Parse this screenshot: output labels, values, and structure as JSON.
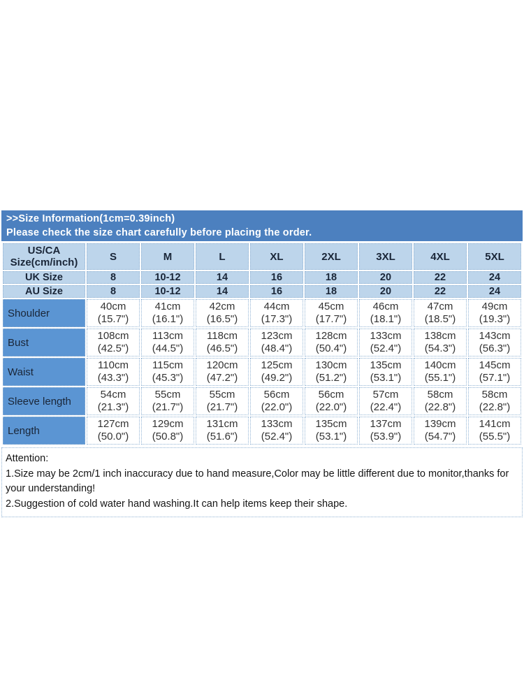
{
  "banner": {
    "line1": ">>Size Information(1cm=0.39inch)",
    "line2": "Please check the size chart carefully before placing the order."
  },
  "table": {
    "corner_line1": "US/CA",
    "corner_line2": "Size(cm/inch)",
    "size_headers": [
      "S",
      "M",
      "L",
      "XL",
      "2XL",
      "3XL",
      "4XL",
      "5XL"
    ],
    "uk_row": {
      "label": "UK Size",
      "values": [
        "8",
        "10-12",
        "14",
        "16",
        "18",
        "20",
        "22",
        "24"
      ]
    },
    "au_row": {
      "label": "AU Size",
      "values": [
        "8",
        "10-12",
        "14",
        "16",
        "18",
        "20",
        "22",
        "24"
      ]
    },
    "measurement_rows": [
      {
        "label": "Shoulder",
        "cm": [
          "40cm",
          "41cm",
          "42cm",
          "44cm",
          "45cm",
          "46cm",
          "47cm",
          "49cm"
        ],
        "inch": [
          "(15.7\")",
          "(16.1\")",
          "(16.5\")",
          "(17.3\")",
          "(17.7\")",
          "(18.1\")",
          "(18.5\")",
          "(19.3\")"
        ]
      },
      {
        "label": "Bust",
        "cm": [
          "108cm",
          "113cm",
          "118cm",
          "123cm",
          "128cm",
          "133cm",
          "138cm",
          "143cm"
        ],
        "inch": [
          "(42.5\")",
          "(44.5\")",
          "(46.5\")",
          "(48.4\")",
          "(50.4\")",
          "(52.4\")",
          "(54.3\")",
          "(56.3\")"
        ]
      },
      {
        "label": "Waist",
        "cm": [
          "110cm",
          "115cm",
          "120cm",
          "125cm",
          "130cm",
          "135cm",
          "140cm",
          "145cm"
        ],
        "inch": [
          "(43.3\")",
          "(45.3\")",
          "(47.2\")",
          "(49.2\")",
          "(51.2\")",
          "(53.1\")",
          "(55.1\")",
          "(57.1\")"
        ]
      },
      {
        "label": "Sleeve length",
        "cm": [
          "54cm",
          "55cm",
          "55cm",
          "56cm",
          "56cm",
          "57cm",
          "58cm",
          "58cm"
        ],
        "inch": [
          "(21.3\")",
          "(21.7\")",
          "(21.7\")",
          "(22.0\")",
          "(22.0\")",
          "(22.4\")",
          "(22.8\")",
          "(22.8\")"
        ]
      },
      {
        "label": "Length",
        "cm": [
          "127cm",
          "129cm",
          "131cm",
          "133cm",
          "135cm",
          "137cm",
          "139cm",
          "141cm"
        ],
        "inch": [
          "(50.0\")",
          "(50.8\")",
          "(51.6\")",
          "(52.4\")",
          "(53.1\")",
          "(53.9\")",
          "(54.7\")",
          "(55.5\")"
        ]
      }
    ]
  },
  "attention": {
    "title": "Attention:",
    "note1": "1.Size may be 2cm/1 inch inaccuracy due to hand measure,Color may be little different due to monitor,thanks for your understanding!",
    "note2": "2.Suggestion of cold water hand washing.It can help items keep their shape."
  },
  "colors": {
    "banner_bg": "#4C80BF",
    "banner_text": "#FFFFFF",
    "header_cell_bg": "#BDD5EB",
    "label_cell_bg": "#5B95D3",
    "grid_line": "#93B4D4",
    "header_text": "#1A2638",
    "cell_text": "#333333"
  }
}
